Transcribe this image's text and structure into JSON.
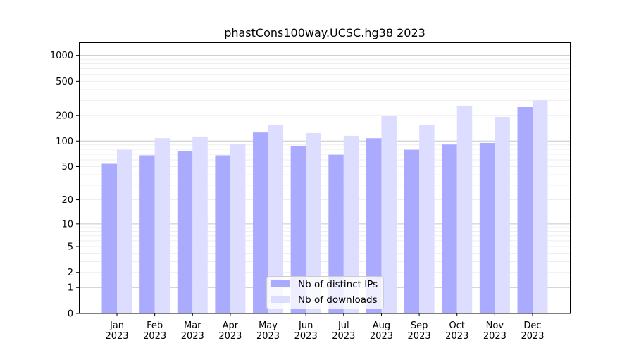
{
  "chart_data": {
    "type": "bar",
    "title": "phastCons100way.UCSC.hg38 2023",
    "xlabel": "",
    "ylabel": "",
    "yscale": "log(1+y)",
    "ylim": [
      0,
      1300
    ],
    "yticks": [
      0,
      1,
      2,
      5,
      10,
      20,
      50,
      100,
      200,
      500,
      1000
    ],
    "grid": true,
    "legend_position": "bottom-center",
    "categories": [
      "Jan\n2023",
      "Feb\n2023",
      "Mar\n2023",
      "Apr\n2023",
      "May\n2023",
      "Jun\n2023",
      "Jul\n2023",
      "Aug\n2023",
      "Sep\n2023",
      "Oct\n2023",
      "Nov\n2023",
      "Dec\n2023"
    ],
    "series": [
      {
        "name": "Nb of distinct IPs",
        "color": "#aaaaff",
        "values": [
          54,
          68,
          77,
          68,
          126,
          88,
          69,
          108,
          79,
          91,
          95,
          250
        ]
      },
      {
        "name": "Nb of downloads",
        "color": "#ddddff",
        "values": [
          79,
          108,
          113,
          93,
          153,
          124,
          115,
          199,
          153,
          260,
          192,
          300
        ]
      }
    ]
  }
}
